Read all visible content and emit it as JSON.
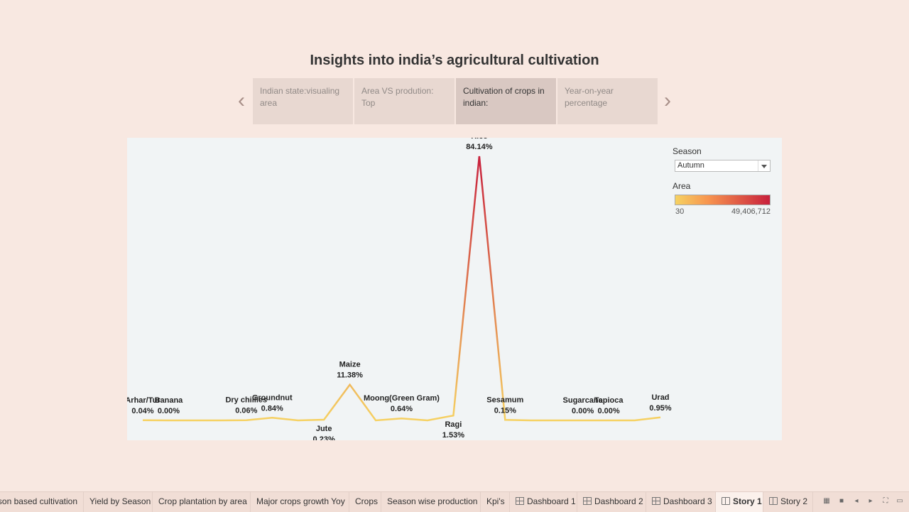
{
  "story": {
    "title": "Insights into india’s agricultural cultivation",
    "points": [
      {
        "label": "Indian state:visualing area",
        "active": false
      },
      {
        "label": "Area VS prodution: Top",
        "active": false
      },
      {
        "label": "Cultivation of crops in indian:",
        "active": true
      },
      {
        "label": "Year-on-year percentage",
        "active": false
      }
    ]
  },
  "filters": {
    "season_title": "Season",
    "season_value": "Autumn",
    "area_title": "Area",
    "area_min": "30",
    "area_max": "49,406,712",
    "color_low": "#f6d262",
    "color_high": "#c8203c"
  },
  "chart_data": {
    "type": "line",
    "title": "",
    "xlabel": "",
    "ylabel": "",
    "measure": "Area share (%)",
    "ylim": [
      0,
      100
    ],
    "grid": false,
    "points": [
      {
        "crop": "Arhar/Tur",
        "pct": 0.04,
        "label": "0.04%",
        "name_label": "Arhar/Tur"
      },
      {
        "crop": "Banana",
        "pct": 0.0,
        "label": "0.00%",
        "name_label": "Banana"
      },
      {
        "crop": "",
        "pct": 0.0,
        "label": "",
        "name_label": ""
      },
      {
        "crop": "",
        "pct": 0.0,
        "label": "",
        "name_label": ""
      },
      {
        "crop": "Dry chillies",
        "pct": 0.06,
        "label": "0.06%",
        "name_label": "Dry chillies"
      },
      {
        "crop": "Groundnut",
        "pct": 0.84,
        "label": "0.84%",
        "name_label": "Groundnut"
      },
      {
        "crop": "",
        "pct": 0.0,
        "label": "",
        "name_label": ""
      },
      {
        "crop": "Jute",
        "pct": 0.23,
        "label": "0.23%",
        "name_label": "Jute"
      },
      {
        "crop": "Maize",
        "pct": 11.38,
        "label": "11.38%",
        "name_label": "Maize"
      },
      {
        "crop": "",
        "pct": 0.0,
        "label": "",
        "name_label": ""
      },
      {
        "crop": "Moong(Green Gram)",
        "pct": 0.64,
        "label": "0.64%",
        "name_label": "Moong(Green Gram)"
      },
      {
        "crop": "",
        "pct": 0.0,
        "label": "",
        "name_label": ""
      },
      {
        "crop": "Ragi",
        "pct": 1.53,
        "label": "1.53%",
        "name_label": "Ragi"
      },
      {
        "crop": "Rice",
        "pct": 84.14,
        "label": "84.14%",
        "name_label": "Rice"
      },
      {
        "crop": "Sesamum",
        "pct": 0.15,
        "label": "0.15%",
        "name_label": "Sesamum"
      },
      {
        "crop": "",
        "pct": 0.0,
        "label": "",
        "name_label": ""
      },
      {
        "crop": "",
        "pct": 0.0,
        "label": "",
        "name_label": ""
      },
      {
        "crop": "Sugarcane",
        "pct": 0.0,
        "label": "0.00%",
        "name_label": "Sugarcane"
      },
      {
        "crop": "Tapioca",
        "pct": 0.0,
        "label": "0.00%",
        "name_label": "Tapioca"
      },
      {
        "crop": "",
        "pct": 0.0,
        "label": "",
        "name_label": ""
      },
      {
        "crop": "Urad",
        "pct": 0.95,
        "label": "0.95%",
        "name_label": "Urad"
      }
    ]
  },
  "tabs": [
    {
      "label": "Season based cultivation",
      "icon": "",
      "active": false
    },
    {
      "label": "Yield by Season",
      "icon": "",
      "active": false
    },
    {
      "label": "Crop plantation by area",
      "icon": "",
      "active": false
    },
    {
      "label": "Major crops growth Yoy",
      "icon": "",
      "active": false
    },
    {
      "label": "Crops",
      "icon": "",
      "active": false
    },
    {
      "label": "Season wise production",
      "icon": "",
      "active": false
    },
    {
      "label": "Kpi's",
      "icon": "",
      "active": false
    },
    {
      "label": "Dashboard 1",
      "icon": "dashboard-icon",
      "active": false
    },
    {
      "label": "Dashboard 2",
      "icon": "dashboard-icon",
      "active": false
    },
    {
      "label": "Dashboard 3",
      "icon": "dashboard-icon",
      "active": false
    },
    {
      "label": "Story 1",
      "icon": "story-icon",
      "active": true
    },
    {
      "label": "Story 2",
      "icon": "story-icon",
      "active": false
    }
  ],
  "controls": [
    "sheet-sorter-icon",
    "filmstrip-icon",
    "prev-sheet-icon",
    "next-sheet-icon",
    "fullscreen-icon",
    "presentation-icon"
  ]
}
